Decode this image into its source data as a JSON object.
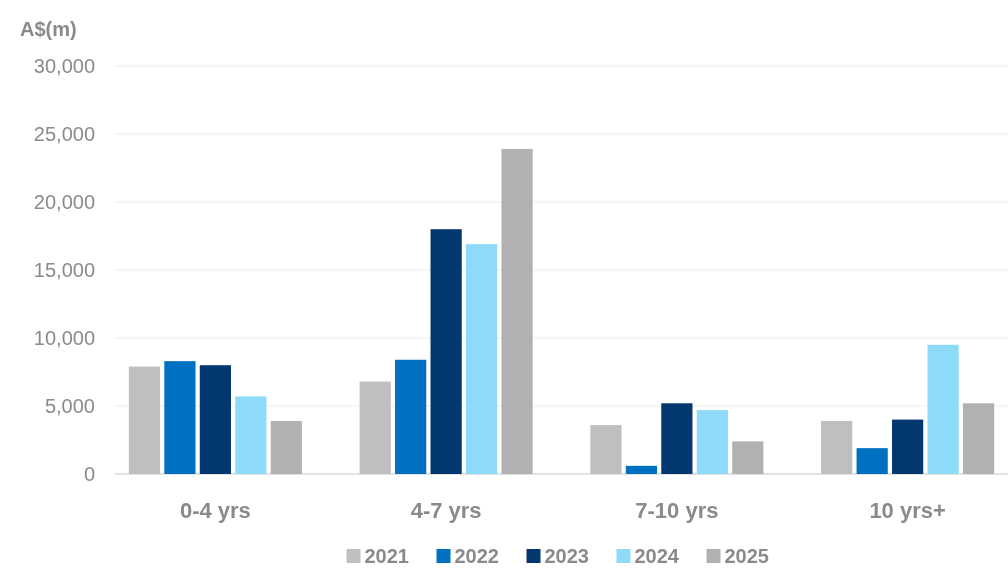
{
  "chart_data": {
    "type": "bar",
    "ylabel": "A$(m)",
    "categories": [
      "0-4 yrs",
      "4-7 yrs",
      "7-10 yrs",
      "10 yrs+"
    ],
    "series": [
      {
        "name": "2021",
        "color": "#bfbfbf",
        "values": [
          7900,
          6800,
          3600,
          3900
        ]
      },
      {
        "name": "2022",
        "color": "#0070c0",
        "values": [
          8300,
          8400,
          600,
          1900
        ]
      },
      {
        "name": "2023",
        "color": "#03376f",
        "values": [
          8000,
          18000,
          5200,
          4000
        ]
      },
      {
        "name": "2024",
        "color": "#8ddbf8",
        "values": [
          5700,
          16900,
          4700,
          9500
        ]
      },
      {
        "name": "2025",
        "color": "#b1b1b1",
        "values": [
          3900,
          23900,
          2400,
          5200
        ]
      }
    ],
    "ylim": [
      0,
      30000
    ],
    "yticks": [
      {
        "value": 0,
        "label": "0"
      },
      {
        "value": 5000,
        "label": "5,000"
      },
      {
        "value": 10000,
        "label": "10,000"
      },
      {
        "value": 15000,
        "label": "15,000"
      },
      {
        "value": 20000,
        "label": "20,000"
      },
      {
        "value": 25000,
        "label": "25,000"
      },
      {
        "value": 30000,
        "label": "30,000"
      }
    ],
    "grid": "y",
    "legend": "bottom"
  }
}
